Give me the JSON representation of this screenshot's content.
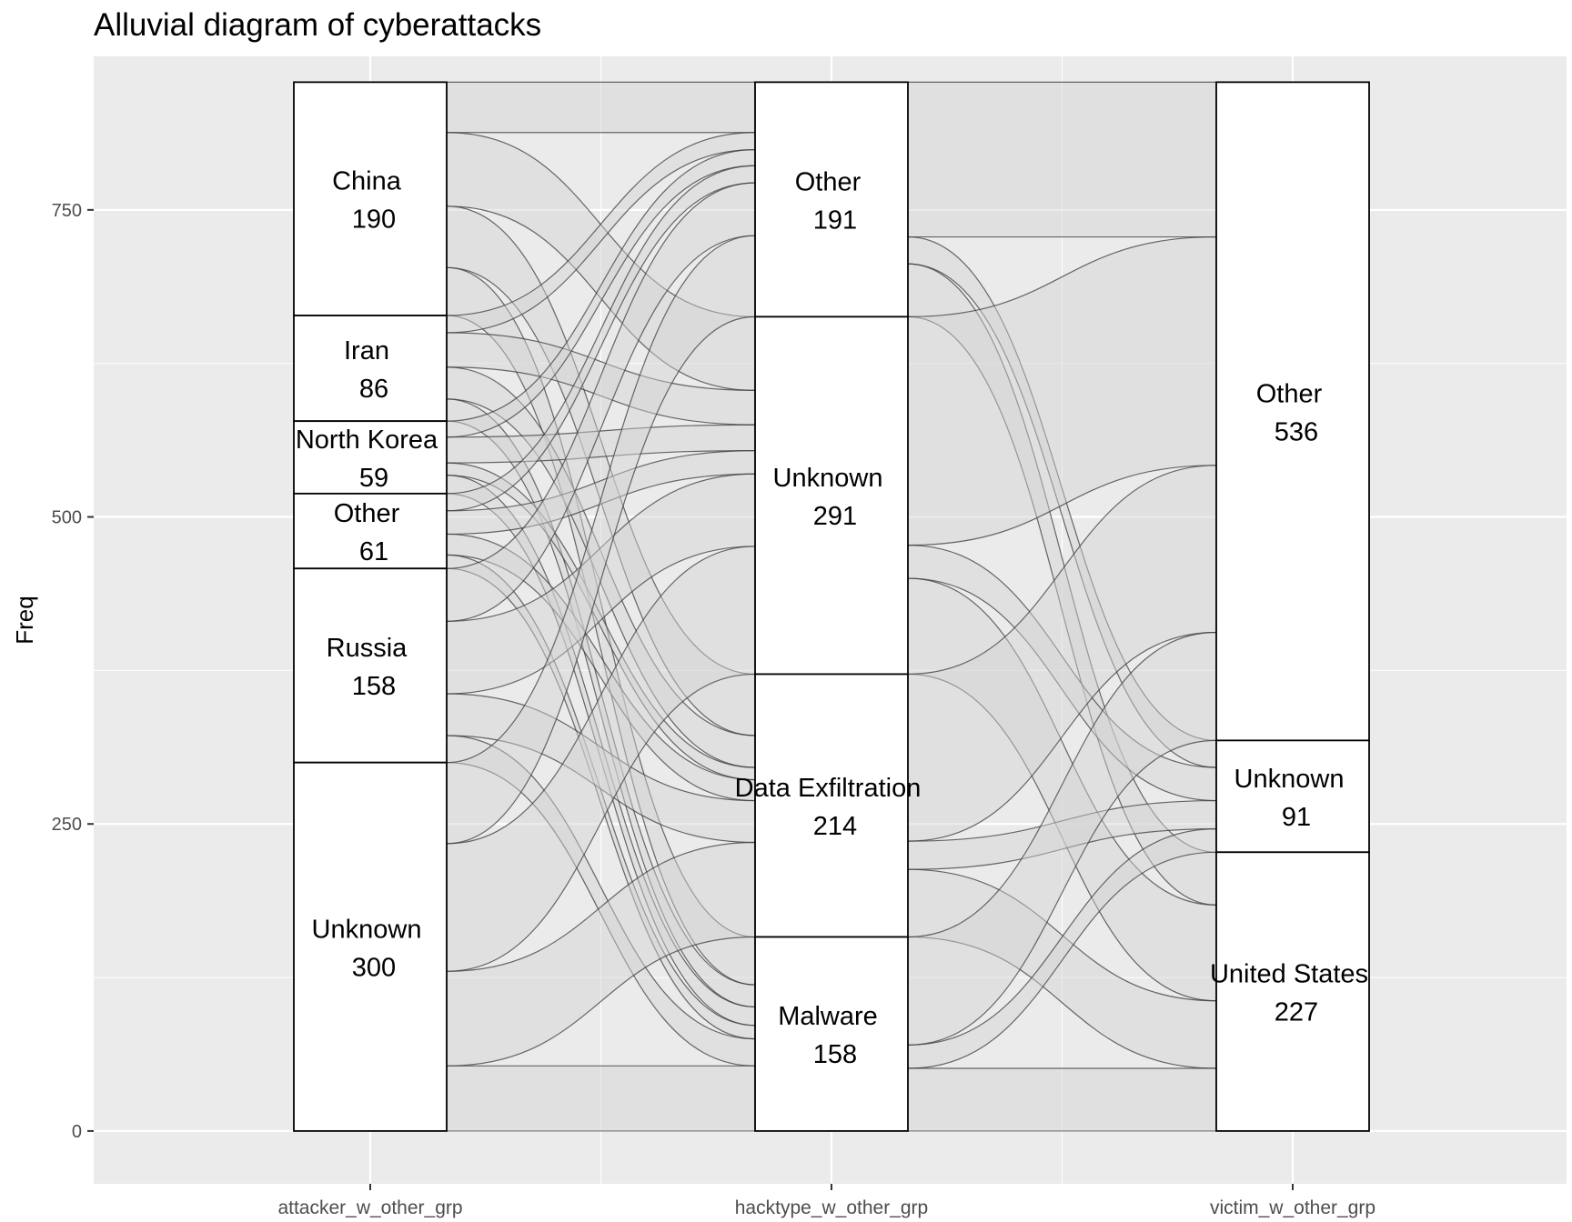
{
  "chart_data": {
    "type": "alluvial",
    "title": "Alluvial diagram of cyberattacks",
    "ylabel": "Freq",
    "ylim": [
      0,
      875
    ],
    "yticks": [
      0,
      250,
      500,
      750
    ],
    "axes": [
      "attacker_w_other_grp",
      "hacktype_w_other_grp",
      "victim_w_other_grp"
    ],
    "strata": [
      [
        {
          "label": "China",
          "value": 190
        },
        {
          "label": "Iran",
          "value": 86
        },
        {
          "label": "North Korea",
          "value": 59
        },
        {
          "label": "Other",
          "value": 61
        },
        {
          "label": "Russia",
          "value": 158
        },
        {
          "label": "Unknown",
          "value": 300
        }
      ],
      [
        {
          "label": "Other",
          "value": 191
        },
        {
          "label": "Unknown",
          "value": 291
        },
        {
          "label": "Data Exfiltration",
          "value": 214
        },
        {
          "label": "Malware",
          "value": 158
        }
      ],
      [
        {
          "label": "Other",
          "value": 536
        },
        {
          "label": "Unknown",
          "value": 91
        },
        {
          "label": "United States",
          "value": 227
        }
      ]
    ],
    "total": 854,
    "grid": true,
    "background": "#EBEBEB",
    "stratum_fill": "#FFFFFF",
    "flow_fill": "#D3D3D3"
  }
}
